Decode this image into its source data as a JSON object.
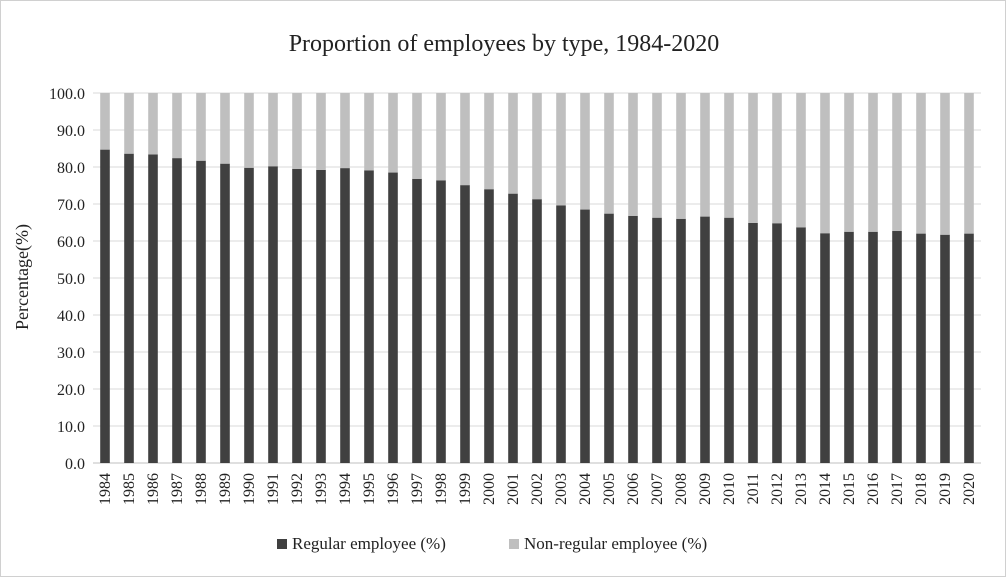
{
  "chart_data": {
    "type": "bar",
    "stacked": true,
    "title": "Proportion of employees by type, 1984-2020",
    "xlabel": "",
    "ylabel": "Percentage(%)",
    "ylim": [
      0,
      100
    ],
    "ytick_labels": [
      "0.0",
      "10.0",
      "20.0",
      "30.0",
      "40.0",
      "50.0",
      "60.0",
      "70.0",
      "80.0",
      "90.0",
      "100.0"
    ],
    "grid": true,
    "legend_position": "bottom",
    "categories": [
      "1984",
      "1985",
      "1986",
      "1987",
      "1988",
      "1989",
      "1990",
      "1991",
      "1992",
      "1993",
      "1994",
      "1995",
      "1996",
      "1997",
      "1998",
      "1999",
      "2000",
      "2001",
      "2002",
      "2003",
      "2004",
      "2005",
      "2006",
      "2007",
      "2008",
      "2009",
      "2010",
      "2011",
      "2012",
      "2013",
      "2014",
      "2015",
      "2016",
      "2017",
      "2018",
      "2019",
      "2020"
    ],
    "series": [
      {
        "name": "Regular employee (%)",
        "color": "#404040",
        "values": [
          84.7,
          83.6,
          83.4,
          82.4,
          81.7,
          80.9,
          79.8,
          80.2,
          79.5,
          79.2,
          79.7,
          79.1,
          78.5,
          76.8,
          76.4,
          75.1,
          74.0,
          72.8,
          71.3,
          69.6,
          68.5,
          67.4,
          66.8,
          66.3,
          66.0,
          66.6,
          66.3,
          64.9,
          64.8,
          63.7,
          62.1,
          62.5,
          62.5,
          62.7,
          62.0,
          61.7,
          62.0
        ]
      },
      {
        "name": "Non-regular employee (%)",
        "color": "#bfbfbf",
        "values": [
          15.3,
          16.4,
          16.6,
          17.6,
          18.3,
          19.1,
          20.2,
          19.8,
          20.5,
          20.8,
          20.3,
          20.9,
          21.5,
          23.2,
          23.6,
          24.9,
          26.0,
          27.2,
          28.7,
          30.4,
          31.5,
          32.6,
          33.2,
          33.7,
          34.0,
          33.4,
          33.7,
          35.1,
          35.2,
          36.3,
          37.9,
          37.5,
          37.5,
          37.3,
          38.0,
          38.3,
          38.0
        ]
      }
    ]
  }
}
